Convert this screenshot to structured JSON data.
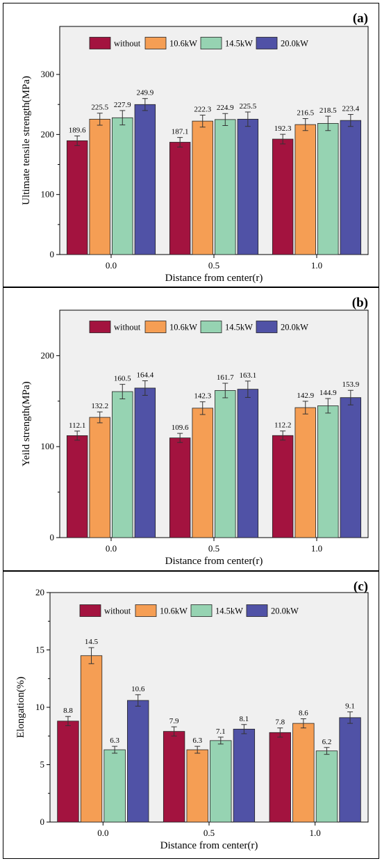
{
  "chart_data": [
    {
      "type": "bar",
      "panel_label": "(a)",
      "categories": [
        "0.0",
        "0.5",
        "1.0"
      ],
      "xlabel": "Distance from center(r)",
      "ylabel": "Ultimate tensile strength(MPa)",
      "ylim": [
        0,
        380
      ],
      "yticks": [
        0,
        100,
        200,
        300
      ],
      "legend_position": "top-center",
      "grid": false,
      "series": [
        {
          "name": "without",
          "color": "#A3133F",
          "values": [
            189.6,
            187.1,
            192.3
          ],
          "errors": [
            8,
            8,
            8
          ]
        },
        {
          "name": "10.6kW",
          "color": "#F59E54",
          "values": [
            225.5,
            222.3,
            216.5
          ],
          "errors": [
            10,
            10,
            10
          ]
        },
        {
          "name": "14.5kW",
          "color": "#96D3B2",
          "values": [
            227.9,
            224.9,
            218.5
          ],
          "errors": [
            12,
            10,
            12
          ]
        },
        {
          "name": "20.0kW",
          "color": "#5052A6",
          "values": [
            249.9,
            225.5,
            223.4
          ],
          "errors": [
            10,
            12,
            10
          ]
        }
      ]
    },
    {
      "type": "bar",
      "panel_label": "(b)",
      "categories": [
        "0.0",
        "0.5",
        "1.0"
      ],
      "xlabel": "Distance from center(r)",
      "ylabel": "Yeild strength(MPa)",
      "ylim": [
        0,
        250
      ],
      "yticks": [
        0,
        100,
        200
      ],
      "legend_position": "top-center",
      "grid": false,
      "series": [
        {
          "name": "without",
          "color": "#A3133F",
          "values": [
            112.1,
            109.6,
            112.2
          ],
          "errors": [
            5,
            5,
            5
          ]
        },
        {
          "name": "10.6kW",
          "color": "#F59E54",
          "values": [
            132.2,
            142.3,
            142.9
          ],
          "errors": [
            6,
            7,
            7
          ]
        },
        {
          "name": "14.5kW",
          "color": "#96D3B2",
          "values": [
            160.5,
            161.7,
            144.9
          ],
          "errors": [
            8,
            8,
            8
          ]
        },
        {
          "name": "20.0kW",
          "color": "#5052A6",
          "values": [
            164.4,
            163.1,
            153.9
          ],
          "errors": [
            8,
            9,
            8
          ]
        }
      ]
    },
    {
      "type": "bar",
      "panel_label": "(c)",
      "categories": [
        "0.0",
        "0.5",
        "1.0"
      ],
      "xlabel": "Distance from center(r)",
      "ylabel": "Elongation(%)",
      "ylim": [
        0,
        20
      ],
      "yticks": [
        0,
        5,
        10,
        15,
        20
      ],
      "legend_position": "top-center",
      "grid": false,
      "series": [
        {
          "name": "without",
          "color": "#A3133F",
          "values": [
            8.8,
            7.9,
            7.8
          ],
          "errors": [
            0.4,
            0.4,
            0.4
          ]
        },
        {
          "name": "10.6kW",
          "color": "#F59E54",
          "values": [
            14.5,
            6.3,
            8.6
          ],
          "errors": [
            0.7,
            0.3,
            0.4
          ]
        },
        {
          "name": "14.5kW",
          "color": "#96D3B2",
          "values": [
            6.3,
            7.1,
            6.2
          ],
          "errors": [
            0.3,
            0.3,
            0.3
          ]
        },
        {
          "name": "20.0kW",
          "color": "#5052A6",
          "values": [
            10.6,
            8.1,
            9.1
          ],
          "errors": [
            0.5,
            0.4,
            0.5
          ]
        }
      ]
    }
  ]
}
